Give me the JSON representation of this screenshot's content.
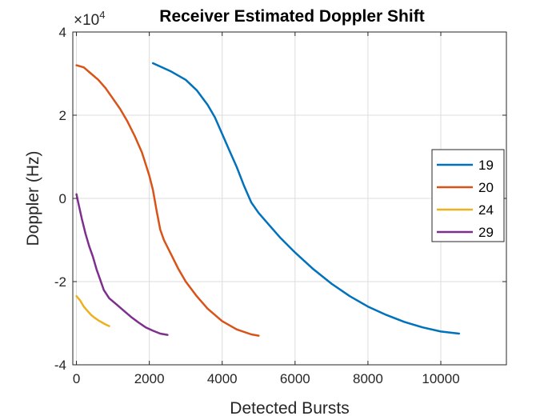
{
  "chart_data": {
    "type": "line",
    "title": "Receiver Estimated Doppler Shift",
    "xlabel": "Detected Bursts",
    "ylabel": "Doppler (Hz)",
    "y_exponent_prefix": "×10",
    "y_exponent_power": "4",
    "xlim": [
      -100,
      11800
    ],
    "ylim": [
      -40000,
      40000
    ],
    "x_ticks": [
      0,
      2000,
      4000,
      6000,
      8000,
      10000
    ],
    "x_tick_labels": [
      "0",
      "2000",
      "4000",
      "6000",
      "8000",
      "10000"
    ],
    "y_ticks": [
      -40000,
      -20000,
      0,
      20000,
      40000
    ],
    "y_tick_labels": [
      "-4",
      "-2",
      "0",
      "2",
      "4"
    ],
    "grid": true,
    "legend_position": "right",
    "series": [
      {
        "name": "19",
        "color": "#0072BD",
        "x": [
          2100,
          2600,
          3000,
          3300,
          3600,
          3800,
          4000,
          4200,
          4400,
          4600,
          4700,
          4800,
          5000,
          5300,
          5600,
          6000,
          6500,
          7000,
          7500,
          8000,
          8500,
          9000,
          9500,
          10000,
          10500
        ],
        "y": [
          32500,
          30500,
          28500,
          26000,
          22500,
          19500,
          15500,
          11500,
          7500,
          3000,
          1000,
          -1000,
          -3500,
          -6500,
          -9500,
          -13000,
          -17000,
          -20500,
          -23500,
          -26000,
          -28000,
          -29700,
          -31000,
          -32000,
          -32500
        ]
      },
      {
        "name": "20",
        "color": "#D95319",
        "x": [
          0,
          200,
          400,
          600,
          800,
          1000,
          1200,
          1400,
          1600,
          1800,
          2000,
          2100,
          2200,
          2300,
          2400,
          2600,
          2800,
          3000,
          3300,
          3600,
          4000,
          4400,
          4800,
          5000
        ],
        "y": [
          32000,
          31500,
          30000,
          28500,
          26500,
          24000,
          21500,
          18500,
          15000,
          11000,
          5500,
          2000,
          -3000,
          -7500,
          -10000,
          -13500,
          -17000,
          -20000,
          -23500,
          -26500,
          -29500,
          -31500,
          -32700,
          -33000
        ]
      },
      {
        "name": "24",
        "color": "#EDB120",
        "x": [
          0,
          100,
          200,
          300,
          400,
          500,
          600,
          700,
          800,
          900
        ],
        "y": [
          -23500,
          -24500,
          -26000,
          -27000,
          -28000,
          -28700,
          -29300,
          -29800,
          -30300,
          -30700
        ]
      },
      {
        "name": "29",
        "color": "#7E2F8E",
        "x": [
          0,
          50,
          150,
          250,
          350,
          450,
          550,
          650,
          750,
          900,
          1100,
          1300,
          1500,
          1700,
          1900,
          2100,
          2300,
          2500
        ],
        "y": [
          1000,
          -1000,
          -5000,
          -8500,
          -11500,
          -14000,
          -17000,
          -19500,
          -22000,
          -24000,
          -25500,
          -27000,
          -28500,
          -29800,
          -31000,
          -31800,
          -32500,
          -32800
        ]
      }
    ]
  }
}
